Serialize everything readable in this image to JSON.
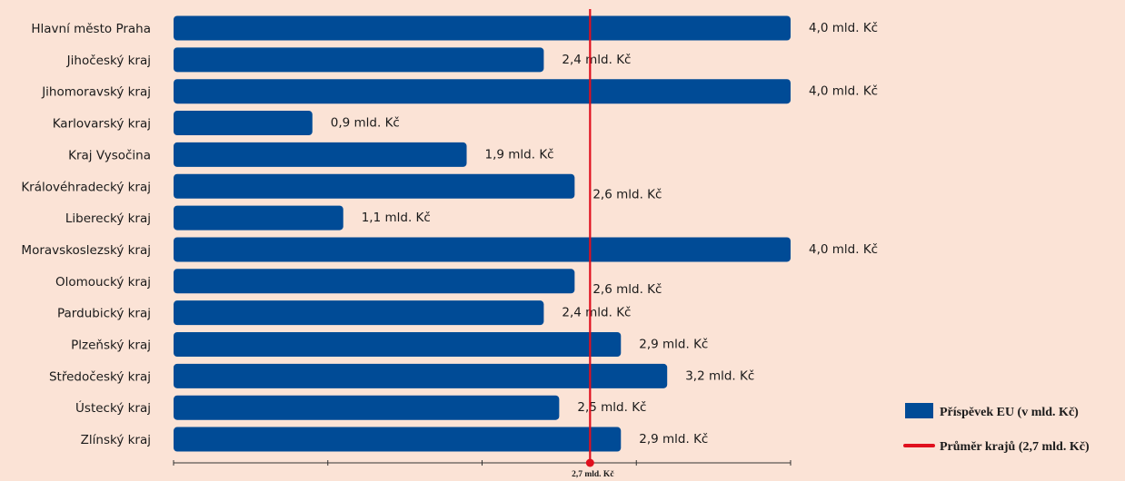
{
  "chart_data": {
    "type": "bar",
    "orientation": "horizontal",
    "categories": [
      "Hlavní město Praha",
      "Jihočeský kraj",
      "Jihomoravský kraj",
      "Karlovarský kraj",
      "Kraj Vysočina",
      "Královéhradecký kraj",
      "Liberecký kraj",
      "Moravskoslezský kraj",
      "Olomoucký kraj",
      "Pardubický kraj",
      "Plzeňský kraj",
      "Středočeský kraj",
      "Ústecký kraj",
      "Zlínský kraj"
    ],
    "values": [
      4.0,
      2.4,
      4.0,
      0.9,
      1.9,
      2.6,
      1.1,
      4.0,
      2.6,
      2.4,
      2.9,
      3.2,
      2.5,
      2.9
    ],
    "value_labels": [
      "4,0 mld. Kč",
      "2,4 mld. Kč",
      "4,0 mld. Kč",
      "0,9 mld. Kč",
      "1,9 mld. Kč",
      "2,6 mld. Kč",
      "1,1 mld. Kč",
      "4,0 mld. Kč",
      "2,6 mld. Kč",
      "2,4 mld. Kč",
      "2,9 mld. Kč",
      "3,2 mld. Kč",
      "2,5 mld. Kč",
      "2,9 mld. Kč"
    ],
    "xlim": [
      0,
      4.0
    ],
    "grid": false,
    "legend_placement": "bottom-right",
    "series": [
      {
        "name": "Příspěvek EU (v mld. Kč)",
        "color": "#004b96"
      }
    ],
    "reference_line": {
      "name": "Průměr krajů (2,7 mld. Kč)",
      "value": 2.7,
      "label": "2,7 mld. Kč",
      "color": "#e0101e"
    }
  }
}
